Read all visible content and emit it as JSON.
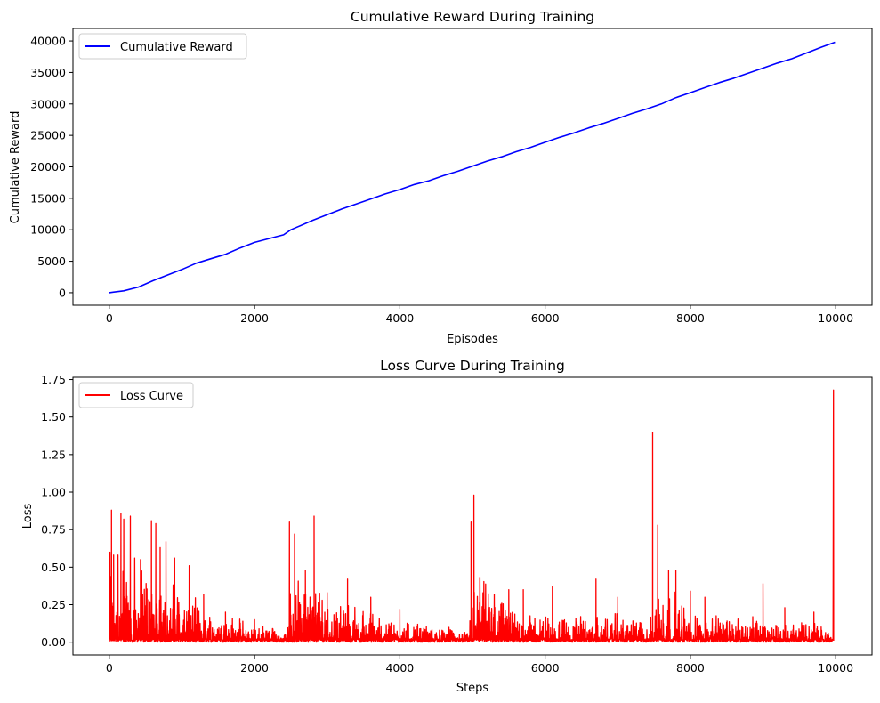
{
  "chart_data": [
    {
      "type": "line",
      "title": "Cumulative Reward During Training",
      "xlabel": "Episodes",
      "ylabel": "Cumulative Reward",
      "xlim": [
        -500,
        10500
      ],
      "ylim": [
        -1990,
        41990
      ],
      "xticks": [
        0,
        2000,
        4000,
        6000,
        8000,
        10000
      ],
      "yticks": [
        0,
        5000,
        10000,
        15000,
        20000,
        25000,
        30000,
        35000,
        40000
      ],
      "legend": "upper left",
      "grid": false,
      "series": [
        {
          "name": "Cumulative Reward",
          "color": "#0000ff",
          "x": [
            0,
            200,
            400,
            600,
            800,
            1000,
            1200,
            1400,
            1600,
            1800,
            2000,
            2200,
            2400,
            2500,
            2600,
            2800,
            3000,
            3200,
            3400,
            3600,
            3800,
            4000,
            4200,
            4400,
            4600,
            4800,
            5000,
            5200,
            5400,
            5600,
            5800,
            6000,
            6200,
            6400,
            6600,
            6800,
            7000,
            7200,
            7400,
            7600,
            7800,
            8000,
            8200,
            8400,
            8600,
            8800,
            9000,
            9200,
            9400,
            9600,
            9800,
            9990
          ],
          "y": [
            0,
            300,
            900,
            1900,
            2800,
            3700,
            4700,
            5400,
            6100,
            7100,
            8000,
            8600,
            9200,
            10000,
            10500,
            11500,
            12400,
            13300,
            14100,
            14900,
            15700,
            16400,
            17200,
            17800,
            18600,
            19300,
            20100,
            20900,
            21600,
            22400,
            23100,
            23900,
            24700,
            25400,
            26200,
            26900,
            27700,
            28500,
            29200,
            30000,
            31000,
            31800,
            32600,
            33400,
            34100,
            34900,
            35700,
            36500,
            37200,
            38100,
            39000,
            39800
          ]
        }
      ]
    },
    {
      "type": "line",
      "title": "Loss Curve During Training",
      "xlabel": "Steps",
      "ylabel": "Loss",
      "xlim": [
        -500,
        10500
      ],
      "ylim": [
        -0.085,
        1.765
      ],
      "xticks": [
        0,
        2000,
        4000,
        6000,
        8000,
        10000
      ],
      "yticks": [
        0.0,
        0.25,
        0.5,
        0.75,
        1.0,
        1.25,
        1.5,
        1.75
      ],
      "ytick_labels": [
        "0.00",
        "0.25",
        "0.50",
        "0.75",
        "1.00",
        "1.25",
        "1.50",
        "1.75"
      ],
      "legend": "upper left",
      "grid": false,
      "series": [
        {
          "name": "Loss Curve",
          "color": "#ff0000",
          "envelope_x": [
            0,
            500,
            1000,
            1500,
            2000,
            2450,
            2500,
            3000,
            3500,
            4000,
            4500,
            4950,
            5000,
            5500,
            6000,
            6500,
            7000,
            7450,
            7500,
            8000,
            8500,
            9000,
            9500,
            9960
          ],
          "envelope_y": [
            0.55,
            0.5,
            0.3,
            0.18,
            0.12,
            0.08,
            0.45,
            0.3,
            0.2,
            0.13,
            0.1,
            0.07,
            0.45,
            0.22,
            0.17,
            0.17,
            0.17,
            0.15,
            0.4,
            0.22,
            0.17,
            0.15,
            0.13,
            0.1
          ],
          "spikes": [
            [
              10,
              0.6
            ],
            [
              30,
              0.88
            ],
            [
              60,
              0.58
            ],
            [
              120,
              0.58
            ],
            [
              160,
              0.86
            ],
            [
              200,
              0.82
            ],
            [
              290,
              0.84
            ],
            [
              350,
              0.56
            ],
            [
              430,
              0.55
            ],
            [
              580,
              0.81
            ],
            [
              640,
              0.79
            ],
            [
              700,
              0.63
            ],
            [
              780,
              0.67
            ],
            [
              900,
              0.56
            ],
            [
              1100,
              0.51
            ],
            [
              1300,
              0.32
            ],
            [
              1600,
              0.2
            ],
            [
              2000,
              0.15
            ],
            [
              2480,
              0.8
            ],
            [
              2550,
              0.72
            ],
            [
              2700,
              0.48
            ],
            [
              2820,
              0.84
            ],
            [
              3000,
              0.33
            ],
            [
              3280,
              0.42
            ],
            [
              3600,
              0.3
            ],
            [
              4000,
              0.22
            ],
            [
              4980,
              0.8
            ],
            [
              5020,
              0.98
            ],
            [
              5100,
              0.43
            ],
            [
              5300,
              0.32
            ],
            [
              5500,
              0.35
            ],
            [
              5700,
              0.35
            ],
            [
              6100,
              0.37
            ],
            [
              6700,
              0.42
            ],
            [
              7000,
              0.3
            ],
            [
              7480,
              1.4
            ],
            [
              7550,
              0.78
            ],
            [
              7700,
              0.48
            ],
            [
              7800,
              0.48
            ],
            [
              8000,
              0.34
            ],
            [
              8200,
              0.3
            ],
            [
              9000,
              0.39
            ],
            [
              9300,
              0.23
            ],
            [
              9700,
              0.2
            ],
            [
              9970,
              1.68
            ]
          ]
        }
      ]
    }
  ]
}
